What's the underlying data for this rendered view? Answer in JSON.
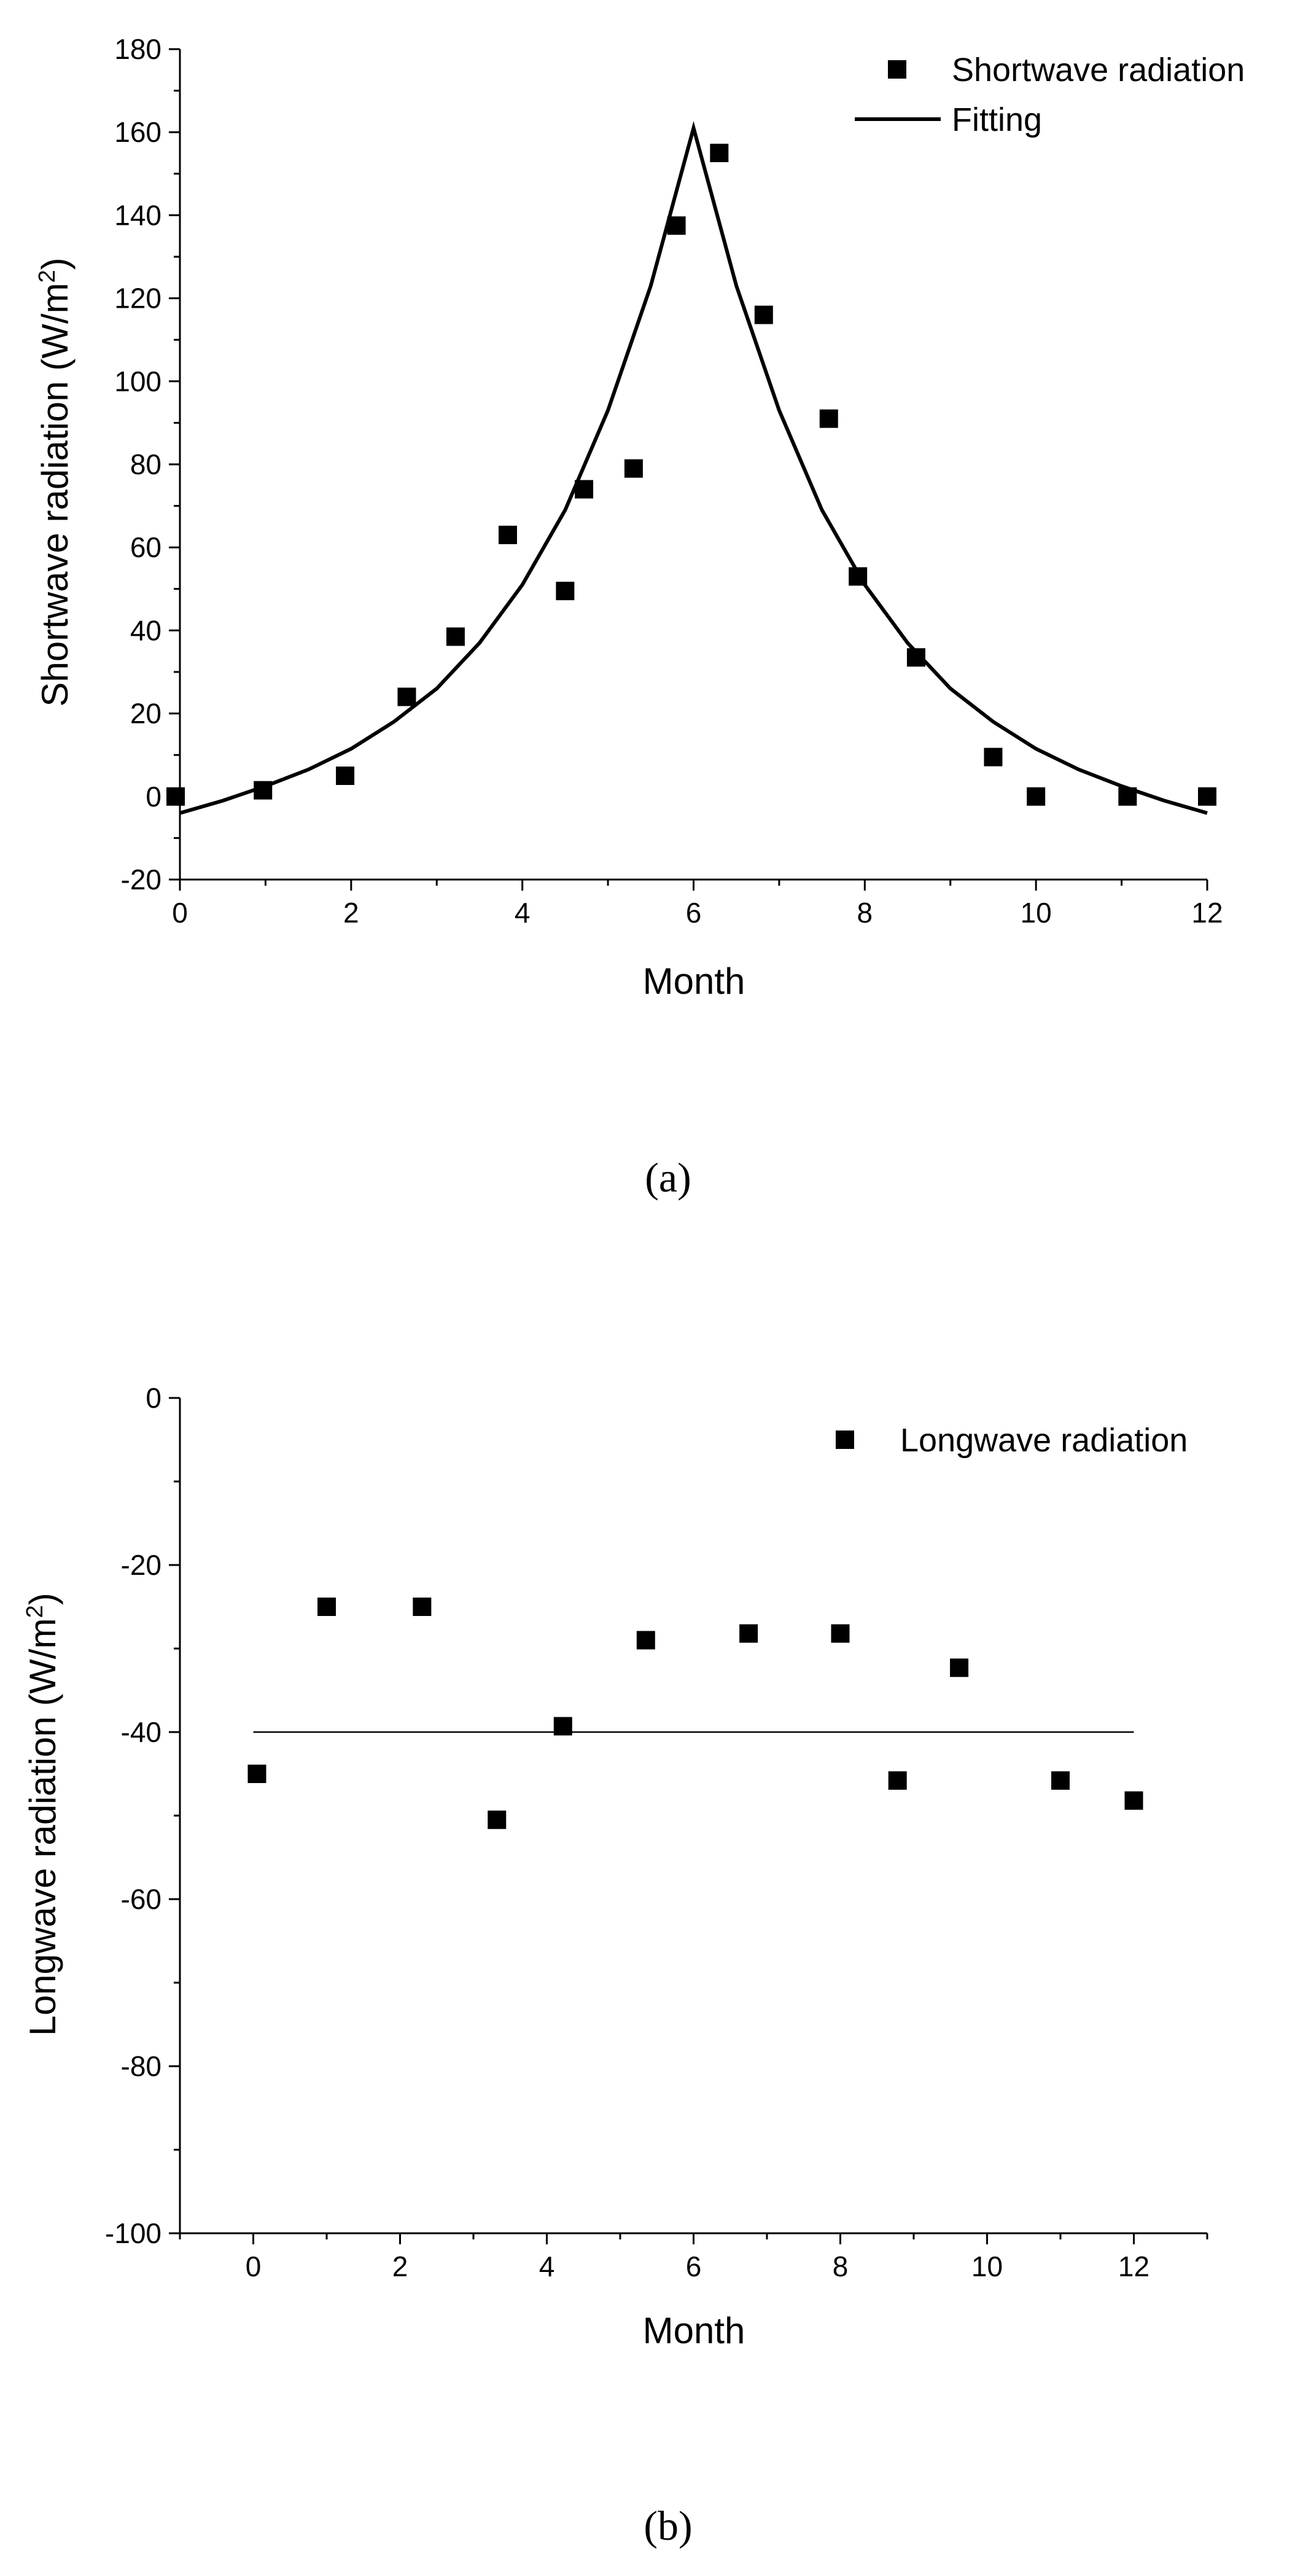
{
  "chart_data": [
    {
      "type": "scatter",
      "caption": "(a)",
      "xlabel": "Month",
      "ylabel_main": "Shortwave radiation (W/m",
      "ylabel_sup": "2",
      "ylabel_end": ")",
      "xlim": [
        0,
        12
      ],
      "ylim": [
        -20,
        180
      ],
      "xticks": [
        0,
        2,
        4,
        6,
        8,
        10,
        12
      ],
      "yticks": [
        -20,
        0,
        20,
        40,
        60,
        80,
        100,
        120,
        140,
        160,
        180
      ],
      "legend_position": "top-right",
      "series": [
        {
          "name": "Shortwave radiation",
          "style": "marker-square",
          "x": [
            -0.05,
            0.97,
            1.93,
            2.65,
            3.22,
            3.83,
            4.5,
            4.72,
            5.3,
            5.8,
            6.3,
            6.82,
            7.58,
            7.92,
            8.6,
            9.5,
            10.0,
            11.07,
            12.0
          ],
          "y": [
            0,
            1.5,
            5,
            24,
            38.5,
            63,
            49.5,
            74,
            79,
            137.5,
            155,
            116,
            91,
            53,
            33.5,
            9.5,
            0,
            0,
            0
          ]
        },
        {
          "name": "Fitting",
          "style": "line",
          "x": [
            0,
            0.5,
            1,
            1.5,
            2,
            2.5,
            3,
            3.5,
            4,
            4.5,
            5,
            5.5,
            6,
            6.5,
            7,
            7.5,
            8,
            8.5,
            9,
            9.5,
            10,
            10.5,
            11,
            11.5,
            12
          ],
          "y": [
            -4,
            -1,
            2.5,
            6.5,
            11.5,
            18,
            26,
            37,
            51,
            69,
            93,
            123,
            161,
            123,
            93,
            69,
            51,
            37,
            26,
            18,
            11.5,
            6.5,
            2.5,
            -1,
            -4
          ]
        }
      ]
    },
    {
      "type": "scatter",
      "caption": "(b)",
      "xlabel": "Month",
      "ylabel_main": "Longwave radiation (W/m",
      "ylabel_sup": "2",
      "ylabel_end": ")",
      "xlim": [
        -1,
        13
      ],
      "ylim": [
        -100,
        0
      ],
      "xticks": [
        0,
        2,
        4,
        6,
        8,
        10,
        12
      ],
      "yticks": [
        -100,
        -80,
        -60,
        -40,
        -20,
        0
      ],
      "legend_position": "top-right",
      "series": [
        {
          "name": "Longwave radiation",
          "style": "marker-square",
          "x": [
            0.05,
            1.0,
            2.3,
            3.32,
            4.22,
            5.35,
            6.75,
            8.0,
            8.78,
            9.62,
            11.0,
            12.0
          ],
          "y": [
            -45,
            -25,
            -25,
            -50.5,
            -39.3,
            -29,
            -28.2,
            -28.2,
            -45.8,
            -32.3,
            -45.8,
            -48.2
          ]
        },
        {
          "name": "",
          "style": "thin-line",
          "x": [
            0,
            12
          ],
          "y": [
            -40,
            -40
          ]
        }
      ]
    }
  ]
}
